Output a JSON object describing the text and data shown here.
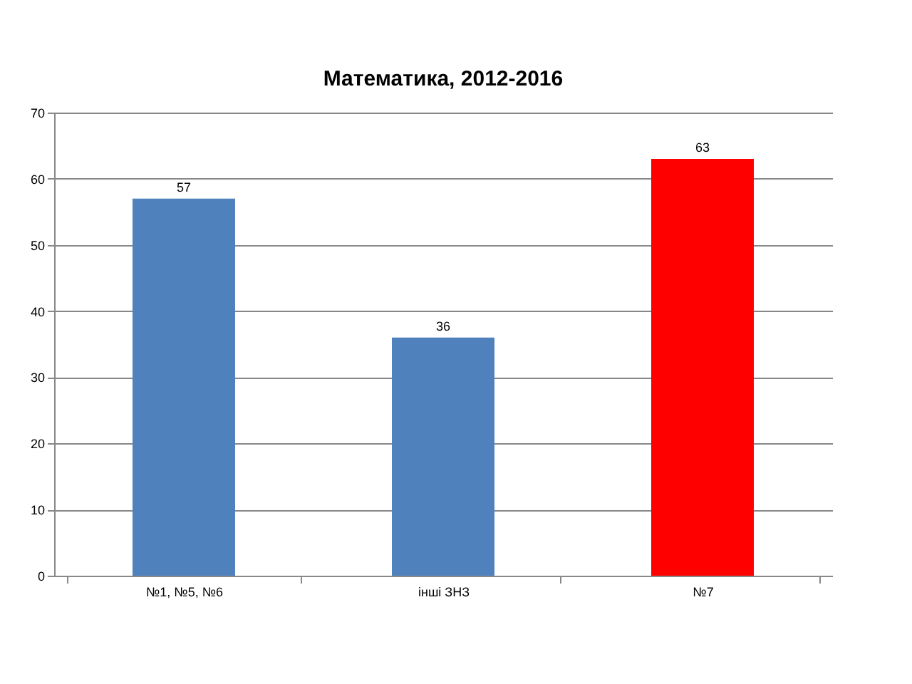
{
  "chart_data": {
    "type": "bar",
    "title": "Математика, 2012-2016",
    "categories": [
      "№1, №5, №6",
      "інші ЗНЗ",
      "№7"
    ],
    "values": [
      57,
      36,
      63
    ],
    "colors": [
      "#4f81bd",
      "#4f81bd",
      "#ff0000"
    ],
    "ylim": [
      0,
      70
    ],
    "yticks": [
      0,
      10,
      20,
      30,
      40,
      50,
      60,
      70
    ],
    "grid": "y",
    "data_labels": true
  }
}
